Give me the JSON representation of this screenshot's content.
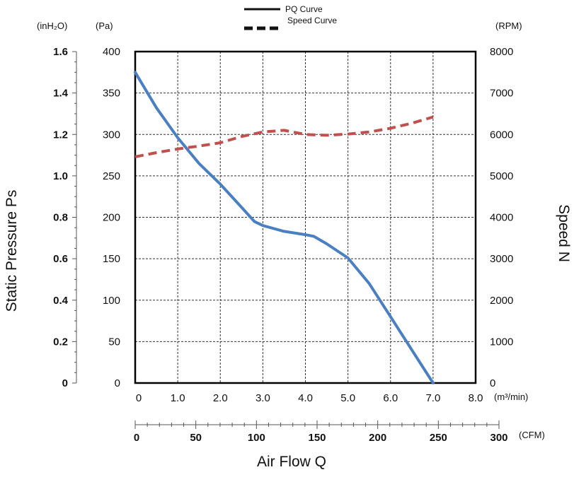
{
  "chart_data": {
    "type": "line",
    "legend": {
      "placement": "top-center",
      "entries": [
        {
          "label": "PQ Curve",
          "style": "solid"
        },
        {
          "label": "Speed Curve",
          "style": "dashed"
        }
      ]
    },
    "units": {
      "left_outer": "(inH₂O)",
      "left_inner": "(Pa)",
      "right": "(RPM)",
      "x_metric": "(m³/min)",
      "x_cfm": "(CFM)"
    },
    "y_label_left": "Static Pressure Ps",
    "y_label_right": "Speed N",
    "x_label": "Air Flow Q",
    "x_metric_ticks": [
      "0",
      "1.0",
      "2.0",
      "3.0",
      "4.0",
      "5.0",
      "6.0",
      "7.0",
      "8.0"
    ],
    "x_cfm_ticks": [
      "0",
      "50",
      "100",
      "150",
      "200",
      "250",
      "300"
    ],
    "y_pa_ticks": [
      "0",
      "50",
      "100",
      "150",
      "200",
      "250",
      "300",
      "350",
      "400"
    ],
    "y_inh2o_ticks": [
      "0",
      "0.2",
      "0.4",
      "0.6",
      "0.8",
      "1.0",
      "1.2",
      "1.4",
      "1.6"
    ],
    "y_rpm_ticks": [
      "0",
      "1000",
      "2000",
      "3000",
      "4000",
      "5000",
      "6000",
      "7000",
      "8000"
    ],
    "xlim": [
      0,
      8
    ],
    "ylim_pa": [
      0,
      400
    ],
    "ylim_rpm": [
      0,
      8000
    ],
    "grid": true,
    "series": [
      {
        "name": "PQ Curve",
        "axis": "pa",
        "color": "#4a7fc1",
        "style": "solid",
        "x": [
          0,
          0.5,
          1.0,
          1.5,
          2.0,
          2.5,
          2.8,
          3.0,
          3.5,
          4.0,
          4.2,
          4.5,
          5.0,
          5.5,
          6.0,
          6.5,
          7.0
        ],
        "y": [
          375,
          332,
          296,
          265,
          240,
          212,
          195,
          190,
          183,
          179,
          177,
          168,
          151,
          120,
          80,
          40,
          0
        ]
      },
      {
        "name": "Speed Curve",
        "axis": "rpm",
        "color": "#c0504d",
        "style": "dashed",
        "x": [
          0,
          0.5,
          1.0,
          1.5,
          2.0,
          2.5,
          3.0,
          3.5,
          4.0,
          4.5,
          5.0,
          5.5,
          6.0,
          6.5,
          7.0
        ],
        "y": [
          5460,
          5560,
          5650,
          5720,
          5800,
          5950,
          6060,
          6100,
          6000,
          5980,
          6010,
          6060,
          6150,
          6270,
          6420
        ]
      }
    ]
  }
}
